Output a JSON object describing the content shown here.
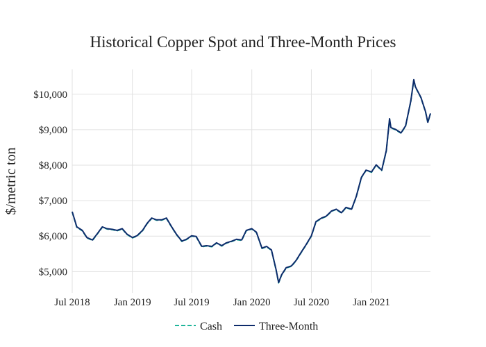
{
  "chart_data": {
    "type": "line",
    "title": "Historical Copper Spot and Three-Month Prices",
    "xlabel": "",
    "ylabel": "$/metric ton",
    "x_ticks": [
      {
        "date": "2018-07-01",
        "label": "Jul 2018"
      },
      {
        "date": "2019-01-01",
        "label": "Jan 2019"
      },
      {
        "date": "2019-07-01",
        "label": "Jul 2019"
      },
      {
        "date": "2020-01-01",
        "label": "Jan 2020"
      },
      {
        "date": "2020-07-01",
        "label": "Jul 2020"
      },
      {
        "date": "2021-01-01",
        "label": "Jan 2021"
      }
    ],
    "y_ticks": [
      {
        "value": 5000,
        "label": "$5,000"
      },
      {
        "value": 6000,
        "label": "$6,000"
      },
      {
        "value": 7000,
        "label": "$7,000"
      },
      {
        "value": 8000,
        "label": "$8,000"
      },
      {
        "value": 9000,
        "label": "$9,000"
      },
      {
        "value": 10000,
        "label": "$10,000"
      }
    ],
    "xlim": [
      "2018-07-01",
      "2021-06-30"
    ],
    "ylim": [
      4400,
      10700
    ],
    "grid": true,
    "legend_position": "bottom",
    "x": [
      "2018-07-01",
      "2018-07-15",
      "2018-08-01",
      "2018-08-15",
      "2018-09-01",
      "2018-09-15",
      "2018-10-01",
      "2018-10-15",
      "2018-11-01",
      "2018-11-15",
      "2018-12-01",
      "2018-12-15",
      "2019-01-01",
      "2019-01-15",
      "2019-02-01",
      "2019-02-15",
      "2019-03-01",
      "2019-03-15",
      "2019-04-01",
      "2019-04-15",
      "2019-05-01",
      "2019-05-15",
      "2019-06-01",
      "2019-06-15",
      "2019-07-01",
      "2019-07-15",
      "2019-08-01",
      "2019-08-15",
      "2019-09-01",
      "2019-09-15",
      "2019-10-01",
      "2019-10-15",
      "2019-11-01",
      "2019-11-15",
      "2019-12-01",
      "2019-12-15",
      "2020-01-01",
      "2020-01-15",
      "2020-02-01",
      "2020-02-15",
      "2020-03-01",
      "2020-03-15",
      "2020-03-23",
      "2020-04-01",
      "2020-04-15",
      "2020-05-01",
      "2020-05-15",
      "2020-06-01",
      "2020-06-15",
      "2020-07-01",
      "2020-07-15",
      "2020-08-01",
      "2020-08-15",
      "2020-09-01",
      "2020-09-15",
      "2020-10-01",
      "2020-10-15",
      "2020-11-01",
      "2020-11-15",
      "2020-12-01",
      "2020-12-15",
      "2021-01-01",
      "2021-01-15",
      "2021-02-01",
      "2021-02-15",
      "2021-02-25",
      "2021-03-01",
      "2021-03-15",
      "2021-04-01",
      "2021-04-15",
      "2021-05-01",
      "2021-05-10",
      "2021-05-15",
      "2021-06-01",
      "2021-06-15",
      "2021-06-22",
      "2021-06-30"
    ],
    "series": [
      {
        "name": "Cash",
        "color": "#1fb59a",
        "dash": "dash",
        "values": [
          6680,
          6250,
          6150,
          5950,
          5880,
          6050,
          6250,
          6200,
          6180,
          6150,
          6200,
          6050,
          5950,
          6000,
          6150,
          6350,
          6500,
          6450,
          6450,
          6500,
          6250,
          6050,
          5850,
          5900,
          6000,
          5980,
          5700,
          5720,
          5700,
          5800,
          5720,
          5800,
          5850,
          5900,
          5880,
          6150,
          6200,
          6100,
          5650,
          5700,
          5600,
          5050,
          4680,
          4900,
          5100,
          5150,
          5300,
          5550,
          5750,
          6000,
          6400,
          6500,
          6550,
          6700,
          6750,
          6650,
          6800,
          6750,
          7100,
          7650,
          7850,
          7800,
          8000,
          7850,
          8400,
          9300,
          9050,
          9000,
          8900,
          9100,
          9800,
          10400,
          10200,
          9900,
          9500,
          9200,
          9450
        ]
      },
      {
        "name": "Three-Month",
        "color": "#0d2b6b",
        "dash": "solid",
        "values": [
          6690,
          6260,
          6160,
          5960,
          5890,
          6060,
          6260,
          6210,
          6190,
          6160,
          6210,
          6060,
          5960,
          6010,
          6160,
          6360,
          6510,
          6460,
          6460,
          6510,
          6260,
          6060,
          5860,
          5910,
          6010,
          5990,
          5710,
          5730,
          5710,
          5810,
          5730,
          5810,
          5860,
          5910,
          5890,
          6160,
          6210,
          6110,
          5660,
          5710,
          5610,
          5060,
          4690,
          4910,
          5110,
          5160,
          5310,
          5560,
          5760,
          6010,
          6410,
          6510,
          6560,
          6710,
          6760,
          6660,
          6810,
          6760,
          7110,
          7660,
          7860,
          7810,
          8010,
          7860,
          8410,
          9310,
          9060,
          9010,
          8910,
          9110,
          9810,
          10410,
          10210,
          9910,
          9510,
          9210,
          9460
        ]
      }
    ]
  }
}
